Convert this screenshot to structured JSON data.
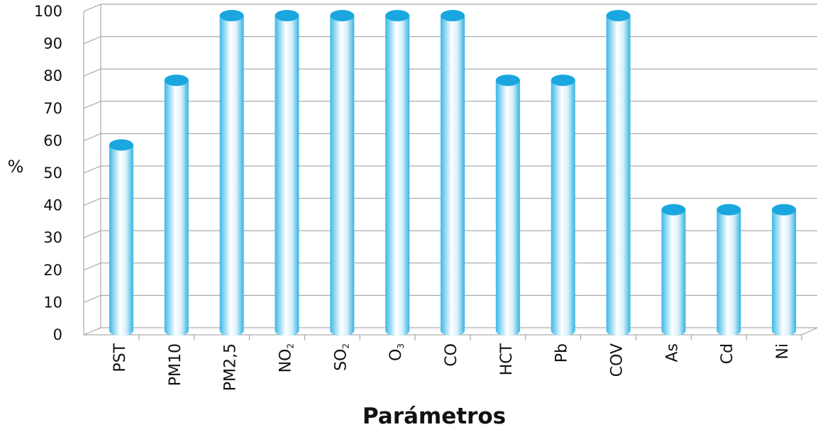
{
  "chart_data": {
    "type": "bar",
    "categories": [
      {
        "main": "PST",
        "sub": ""
      },
      {
        "main": "PM10",
        "sub": ""
      },
      {
        "main": "PM2,5",
        "sub": ""
      },
      {
        "main": "NO",
        "sub": "2"
      },
      {
        "main": "SO",
        "sub": "2"
      },
      {
        "main": "O",
        "sub": "3"
      },
      {
        "main": "CO",
        "sub": ""
      },
      {
        "main": "HCT",
        "sub": ""
      },
      {
        "main": "Pb",
        "sub": ""
      },
      {
        "main": "COV",
        "sub": ""
      },
      {
        "main": "As",
        "sub": ""
      },
      {
        "main": "Cd",
        "sub": ""
      },
      {
        "main": "Ni",
        "sub": ""
      }
    ],
    "values": [
      60,
      80,
      100,
      100,
      100,
      100,
      100,
      80,
      80,
      100,
      40,
      40,
      40
    ],
    "ylim": [
      0,
      100
    ],
    "yticks": [
      "0",
      "10",
      "20",
      "30",
      "40",
      "50",
      "60",
      "70",
      "80",
      "90",
      "100"
    ],
    "xlabel": "Parámetros",
    "ylabel": "%",
    "grid": true,
    "bar_style": "3d-cylinder",
    "bar_color": "#29b6e8",
    "bar_top_color": "#1aa7df"
  }
}
